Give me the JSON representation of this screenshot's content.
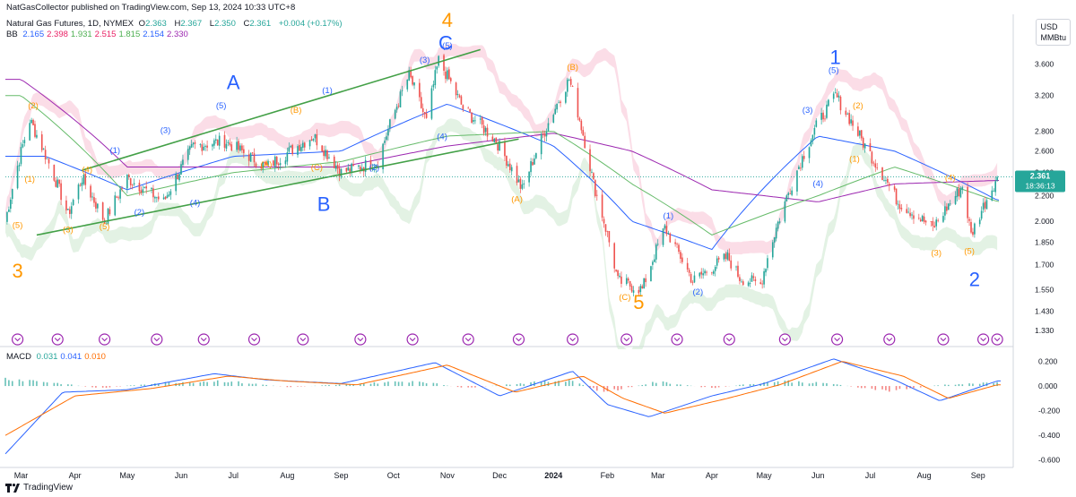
{
  "header": {
    "publisher": "NatGasCollector published on TradingView.com, Sep 13, 2024 10:33 UTC+8",
    "symbol": "Natural Gas Futures, 1D, NYMEX",
    "ohlc": {
      "o_label": "O",
      "o": "2.363",
      "h_label": "H",
      "h": "2.367",
      "l_label": "L",
      "l": "2.350",
      "c_label": "C",
      "c": "2.361",
      "change": "+0.004 (+0.17%)"
    },
    "bb": {
      "label": "BB",
      "values": [
        "2.165",
        "2.398",
        "1.931",
        "2.515",
        "1.815",
        "2.154",
        "2.330"
      ],
      "colors": [
        "#2962ff",
        "#e91e63",
        "#4caf50",
        "#e91e63",
        "#4caf50",
        "#2962ff",
        "#9c27b0"
      ]
    },
    "macd": {
      "label": "MACD",
      "values": [
        "0.031",
        "0.041",
        "0.010"
      ],
      "colors": [
        "#26a69a",
        "#2962ff",
        "#ff6d00"
      ]
    }
  },
  "price_axis": {
    "currency": "USD",
    "unit": "MMBtu",
    "current_price": "2.361",
    "countdown": "18:36:13",
    "current_price_color": "#26a69a"
  },
  "footer": {
    "brand": "TradingView"
  },
  "colors": {
    "up": "#26a69a",
    "down": "#ef5350",
    "wave_blue": "#2962ff",
    "wave_orange": "#ff9800",
    "channel": "#43a047",
    "ma_purple": "#9c27b0",
    "ma_green": "#66bb6a",
    "bb_upper_fill": "#f8bbd0",
    "bb_lower_fill": "#c8e6c9"
  },
  "chart_data": [
    {
      "type": "line",
      "name": "price",
      "title": "Natural Gas Futures, 1D, NYMEX",
      "x_ticks": [
        "Mar",
        "Apr",
        "May",
        "Jun",
        "Jul",
        "Aug",
        "Sep",
        "Oct",
        "Nov",
        "Dec",
        "2024",
        "Feb",
        "Mar",
        "Apr",
        "May",
        "Jun",
        "Jul",
        "Aug",
        "Sep"
      ],
      "y_ticks": [
        "3.600",
        "3.200",
        "2.800",
        "2.600",
        "2.400",
        "2.200",
        "2.000",
        "1.850",
        "1.700",
        "1.550",
        "1.430",
        "1.330"
      ],
      "ylim": [
        1.24,
        4.0
      ],
      "y_scale": "log",
      "close_anchors": {
        "x": [
          "2023-02-20",
          "2023-03-06",
          "2023-03-28",
          "2023-04-05",
          "2023-04-18",
          "2023-05-01",
          "2023-05-22",
          "2023-06-08",
          "2023-06-26",
          "2023-07-20",
          "2023-08-16",
          "2023-09-01",
          "2023-09-22",
          "2023-10-10",
          "2023-10-20",
          "2023-10-27",
          "2023-11-10",
          "2023-11-29",
          "2023-12-14",
          "2024-01-10",
          "2024-01-24",
          "2024-02-07",
          "2024-02-21",
          "2024-03-05",
          "2024-03-21",
          "2024-04-10",
          "2024-04-17",
          "2024-04-29",
          "2024-05-08",
          "2024-05-31",
          "2024-06-11",
          "2024-06-28",
          "2024-07-17",
          "2024-08-06",
          "2024-08-23",
          "2024-08-28",
          "2024-09-12"
        ],
        "y": [
          2.0,
          2.92,
          2.05,
          2.35,
          2.0,
          2.35,
          2.15,
          2.65,
          2.7,
          2.45,
          2.75,
          2.4,
          2.5,
          3.45,
          2.9,
          3.65,
          3.05,
          2.7,
          2.25,
          3.4,
          2.3,
          1.6,
          1.55,
          1.95,
          1.6,
          1.75,
          1.62,
          1.58,
          1.95,
          2.85,
          3.2,
          2.65,
          2.15,
          1.95,
          2.28,
          1.9,
          2.361
        ]
      },
      "series": [
        {
          "name": "BB",
          "color": "#2962ff",
          "x": [
            "2023-03-15",
            "2023-05-01",
            "2023-07-01",
            "2023-09-01",
            "2023-11-01",
            "2024-01-01",
            "2024-02-15",
            "2024-04-01",
            "2024-06-01",
            "2024-07-15",
            "2024-09-12"
          ],
          "y": [
            2.55,
            2.25,
            2.55,
            2.6,
            3.1,
            2.65,
            2.0,
            1.8,
            2.75,
            2.6,
            2.165
          ]
        },
        {
          "name": "",
          "color": "#9c27b0",
          "x": [
            "2023-03-01",
            "2023-05-01",
            "2023-07-01",
            "2023-09-01",
            "2023-11-01",
            "2024-01-01",
            "2024-02-15",
            "2024-04-01",
            "2024-06-01",
            "2024-07-15",
            "2024-09-12"
          ],
          "y": [
            3.4,
            2.45,
            2.45,
            2.45,
            2.65,
            2.78,
            2.6,
            2.25,
            2.15,
            2.3,
            2.33
          ]
        },
        {
          "name": "",
          "color": "#66bb6a",
          "x": [
            "2023-03-01",
            "2023-05-01",
            "2023-07-01",
            "2023-09-01",
            "2023-11-01",
            "2024-01-01",
            "2024-02-15",
            "2024-04-01",
            "2024-06-01",
            "2024-07-15",
            "2024-09-12"
          ],
          "y": [
            3.2,
            2.2,
            2.4,
            2.5,
            2.75,
            2.8,
            2.3,
            1.9,
            2.2,
            2.45,
            2.154
          ]
        }
      ],
      "channel": {
        "upper": {
          "x": [
            "2023-04-05",
            "2023-11-20"
          ],
          "y": [
            2.42,
            3.8
          ]
        },
        "lower": {
          "x": [
            "2023-03-10",
            "2023-12-12"
          ],
          "y": [
            1.9,
            2.72
          ]
        }
      },
      "annotations": [
        {
          "text": "3",
          "x": "2023-02-27",
          "y": 1.62,
          "color": "#ff9800",
          "size": "big"
        },
        {
          "text": "A",
          "x": "2023-07-01",
          "y": 3.28,
          "color": "#2962ff",
          "size": "big"
        },
        {
          "text": "B",
          "x": "2023-08-22",
          "y": 2.08,
          "color": "#2962ff",
          "size": "big"
        },
        {
          "text": "4",
          "x": "2023-11-01",
          "y": 4.55,
          "color": "#ff9800",
          "size": "big"
        },
        {
          "text": "C",
          "x": "2023-10-31",
          "y": 3.8,
          "color": "#2962ff",
          "size": "big"
        },
        {
          "text": "5",
          "x": "2024-02-19",
          "y": 1.38,
          "color": "#ff9800",
          "size": "big"
        },
        {
          "text": "1",
          "x": "2024-06-11",
          "y": 3.6,
          "color": "#2962ff",
          "size": "big"
        },
        {
          "text": "2",
          "x": "2024-08-30",
          "y": 1.57,
          "color": "#2962ff",
          "size": "big"
        },
        {
          "text": "(5)",
          "x": "2023-02-27",
          "y": 1.95,
          "color": "#ff9800"
        },
        {
          "text": "(2)",
          "x": "2023-03-08",
          "y": 3.05,
          "color": "#ff9800"
        },
        {
          "text": "(1)",
          "x": "2023-03-06",
          "y": 2.32,
          "color": "#ff9800"
        },
        {
          "text": "(3)",
          "x": "2023-03-28",
          "y": 1.92,
          "color": "#ff9800"
        },
        {
          "text": "(4)",
          "x": "2023-04-08",
          "y": 2.4,
          "color": "#ff9800"
        },
        {
          "text": "(5)",
          "x": "2023-04-18",
          "y": 1.94,
          "color": "#ff9800"
        },
        {
          "text": "(1)",
          "x": "2023-04-24",
          "y": 2.58,
          "color": "#2962ff"
        },
        {
          "text": "(2)",
          "x": "2023-05-08",
          "y": 2.05,
          "color": "#2962ff"
        },
        {
          "text": "(3)",
          "x": "2023-05-23",
          "y": 2.78,
          "color": "#2962ff"
        },
        {
          "text": "(4)",
          "x": "2023-06-09",
          "y": 2.12,
          "color": "#2962ff"
        },
        {
          "text": "(5)",
          "x": "2023-06-24",
          "y": 3.05,
          "color": "#2962ff"
        },
        {
          "text": "(A)",
          "x": "2023-07-20",
          "y": 2.45,
          "color": "#ff9800"
        },
        {
          "text": "(B)",
          "x": "2023-08-06",
          "y": 3.0,
          "color": "#ff9800"
        },
        {
          "text": "(C)",
          "x": "2023-08-18",
          "y": 2.42,
          "color": "#ff9800"
        },
        {
          "text": "(1)",
          "x": "2023-08-24",
          "y": 3.23,
          "color": "#2962ff"
        },
        {
          "text": "(2)",
          "x": "2023-09-20",
          "y": 2.42,
          "color": "#2962ff"
        },
        {
          "text": "(3)",
          "x": "2023-10-19",
          "y": 3.62,
          "color": "#2962ff"
        },
        {
          "text": "(4)",
          "x": "2023-10-29",
          "y": 2.72,
          "color": "#2962ff"
        },
        {
          "text": "(5)",
          "x": "2023-11-01",
          "y": 3.82,
          "color": "#2962ff"
        },
        {
          "text": "(A)",
          "x": "2023-12-11",
          "y": 2.15,
          "color": "#ff9800"
        },
        {
          "text": "(B)",
          "x": "2024-01-12",
          "y": 3.52,
          "color": "#ff9800"
        },
        {
          "text": "(C)",
          "x": "2024-02-11",
          "y": 1.49,
          "color": "#ff9800"
        },
        {
          "text": "(1)",
          "x": "2024-03-07",
          "y": 2.02,
          "color": "#2962ff"
        },
        {
          "text": "(2)",
          "x": "2024-03-24",
          "y": 1.52,
          "color": "#2962ff"
        },
        {
          "text": "(3)",
          "x": "2024-05-26",
          "y": 3.0,
          "color": "#2962ff"
        },
        {
          "text": "(4)",
          "x": "2024-06-01",
          "y": 2.28,
          "color": "#2962ff"
        },
        {
          "text": "(5)",
          "x": "2024-06-10",
          "y": 3.48,
          "color": "#2962ff"
        },
        {
          "text": "(2)",
          "x": "2024-06-24",
          "y": 3.05,
          "color": "#ff9800"
        },
        {
          "text": "(1)",
          "x": "2024-06-22",
          "y": 2.5,
          "color": "#ff9800"
        },
        {
          "text": "(3)",
          "x": "2024-08-08",
          "y": 1.76,
          "color": "#ff9800"
        },
        {
          "text": "(4)",
          "x": "2024-08-16",
          "y": 2.33,
          "color": "#ff9800"
        },
        {
          "text": "(5)",
          "x": "2024-08-27",
          "y": 1.77,
          "color": "#ff9800"
        }
      ],
      "event_markers_x": [
        "2023-02-27",
        "2023-03-22",
        "2023-04-18",
        "2023-05-18",
        "2023-06-14",
        "2023-07-13",
        "2023-08-10",
        "2023-09-12",
        "2023-10-12",
        "2023-11-13",
        "2023-12-12",
        "2024-01-12",
        "2024-02-12",
        "2024-03-12",
        "2024-04-11",
        "2024-05-13",
        "2024-06-12",
        "2024-07-12",
        "2024-08-12",
        "2024-09-04",
        "2024-09-12"
      ]
    },
    {
      "type": "bar",
      "name": "MACD",
      "y_ticks": [
        "0.200",
        "0.000",
        "-0.200",
        "-0.400",
        "-0.600"
      ],
      "ylim": [
        -0.66,
        0.24
      ],
      "histogram_anchors": {
        "x": [
          "2023-02-20",
          "2023-03-10",
          "2023-04-15",
          "2023-05-20",
          "2023-06-25",
          "2023-08-01",
          "2023-09-10",
          "2023-10-15",
          "2023-11-10",
          "2023-12-10",
          "2024-01-10",
          "2024-01-30",
          "2024-03-01",
          "2024-04-01",
          "2024-05-10",
          "2024-06-10",
          "2024-07-10",
          "2024-08-10",
          "2024-09-12"
        ],
        "y": [
          0.07,
          0.05,
          -0.02,
          0.03,
          0.05,
          -0.01,
          0.02,
          0.05,
          -0.02,
          0.02,
          0.06,
          -0.06,
          0.04,
          -0.02,
          0.05,
          0.02,
          -0.05,
          0.01,
          0.031
        ]
      },
      "series": [
        {
          "name": "MACD",
          "color": "#2962ff",
          "x": [
            "2023-02-20",
            "2023-03-25",
            "2023-05-01",
            "2023-06-20",
            "2023-07-20",
            "2023-09-01",
            "2023-10-25",
            "2023-12-01",
            "2024-01-12",
            "2024-02-01",
            "2024-02-25",
            "2024-04-01",
            "2024-05-01",
            "2024-06-10",
            "2024-07-15",
            "2024-08-10",
            "2024-09-12"
          ],
          "y": [
            -0.55,
            -0.05,
            -0.03,
            0.1,
            0.05,
            0.02,
            0.19,
            -0.08,
            0.12,
            -0.15,
            -0.25,
            -0.08,
            0.02,
            0.22,
            0.05,
            -0.12,
            0.041
          ]
        },
        {
          "name": "Signal",
          "color": "#ff6d00",
          "x": [
            "2023-02-20",
            "2023-04-01",
            "2023-05-15",
            "2023-06-28",
            "2023-08-01",
            "2023-09-10",
            "2023-11-01",
            "2023-12-10",
            "2024-01-18",
            "2024-02-10",
            "2024-03-05",
            "2024-04-10",
            "2024-05-10",
            "2024-06-15",
            "2024-07-20",
            "2024-08-15",
            "2024-09-12"
          ],
          "y": [
            -0.4,
            -0.08,
            -0.02,
            0.08,
            0.04,
            0.01,
            0.17,
            -0.05,
            0.08,
            -0.1,
            -0.22,
            -0.1,
            0.01,
            0.2,
            0.08,
            -0.1,
            0.01
          ]
        }
      ]
    }
  ]
}
